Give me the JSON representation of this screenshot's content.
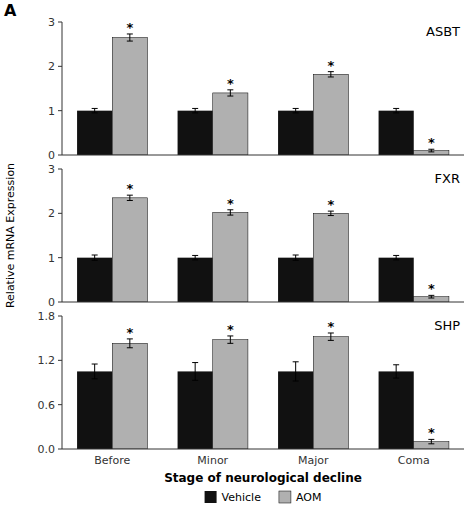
{
  "chart_data": [
    {
      "type": "bar",
      "title": "ASBT",
      "annotation": "A",
      "categories": [
        "Before",
        "Minor",
        "Major",
        "Coma"
      ],
      "series": [
        {
          "name": "Vehicle",
          "color": "#111111",
          "values": [
            1.0,
            1.0,
            1.0,
            1.0
          ],
          "errors": [
            0.05,
            0.05,
            0.05,
            0.05
          ]
        },
        {
          "name": "AOM",
          "color": "#b0b0b0",
          "values": [
            2.65,
            1.4,
            1.82,
            0.1
          ],
          "errors": [
            0.08,
            0.07,
            0.06,
            0.03
          ],
          "value_annotations": [
            "*",
            "*",
            "*",
            "*"
          ]
        }
      ],
      "ylim": [
        0,
        3.0
      ],
      "yticks": [
        0,
        1,
        2,
        3
      ],
      "grid": false,
      "tick_labels": "y"
    },
    {
      "type": "bar",
      "title": "FXR",
      "y_label": "Relative mRNA Expression",
      "categories": [
        "Before",
        "Minor",
        "Major",
        "Coma"
      ],
      "series": [
        {
          "name": "Vehicle",
          "color": "#111111",
          "values": [
            1.0,
            1.0,
            1.0,
            1.0
          ],
          "errors": [
            0.06,
            0.05,
            0.06,
            0.05
          ]
        },
        {
          "name": "AOM",
          "color": "#b0b0b0",
          "values": [
            2.35,
            2.02,
            2.0,
            0.12
          ],
          "errors": [
            0.06,
            0.06,
            0.05,
            0.03
          ],
          "value_annotations": [
            "*",
            "*",
            "*",
            "*"
          ]
        }
      ],
      "ylim": [
        0,
        3.0
      ],
      "yticks": [
        0,
        1,
        2,
        3
      ],
      "grid": false,
      "tick_labels": "y"
    },
    {
      "type": "bar",
      "title": "SHP",
      "x_label": "Stage of neurological decline",
      "categories": [
        "Before",
        "Minor",
        "Major",
        "Coma"
      ],
      "series": [
        {
          "name": "Vehicle",
          "color": "#111111",
          "values": [
            1.05,
            1.05,
            1.05,
            1.05
          ],
          "errors": [
            0.1,
            0.12,
            0.13,
            0.09
          ]
        },
        {
          "name": "AOM",
          "color": "#b0b0b0",
          "values": [
            1.43,
            1.48,
            1.52,
            0.1
          ],
          "errors": [
            0.06,
            0.05,
            0.05,
            0.03
          ],
          "value_annotations": [
            "*",
            "*",
            "*",
            "*"
          ]
        }
      ],
      "ylim": [
        0,
        1.8
      ],
      "yticks": [
        {
          "value": 0,
          "label": "0.0"
        },
        {
          "value": 0.6,
          "label": "0.6"
        },
        {
          "value": 1.2,
          "label": "1.2"
        },
        {
          "value": 1.8,
          "label": "1.8"
        }
      ],
      "grid": false,
      "legend": "bottom"
    }
  ]
}
